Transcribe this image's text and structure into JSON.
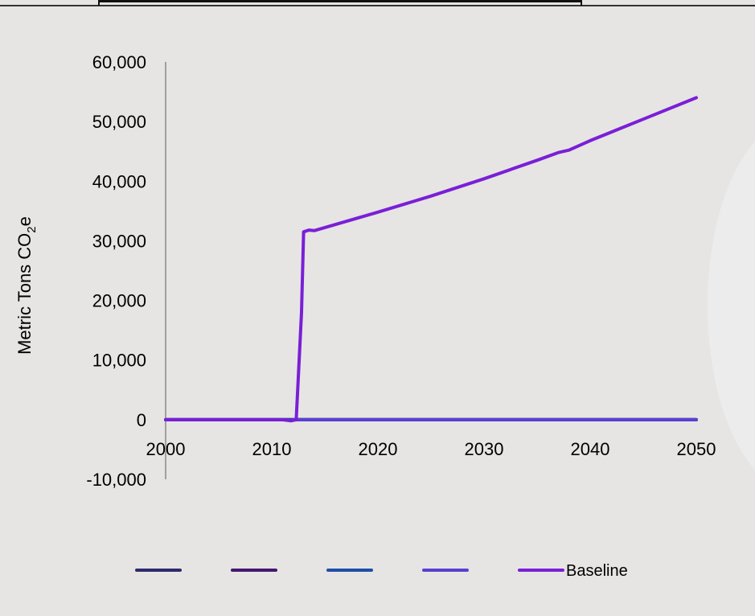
{
  "chart_data": {
    "type": "line",
    "title": "",
    "xlabel": "",
    "ylabel": {
      "main": "Metric Tons CO",
      "subscript": "2",
      "suffix": "e"
    },
    "xlim": [
      2000,
      2050
    ],
    "ylim": [
      -10000,
      60000
    ],
    "x_ticks": [
      2000,
      2010,
      2020,
      2030,
      2040,
      2050
    ],
    "x_tick_labels": [
      "2000",
      "2010",
      "2020",
      "2030",
      "2040",
      "2050"
    ],
    "y_ticks": [
      60000,
      50000,
      40000,
      30000,
      20000,
      10000,
      0,
      -10000
    ],
    "y_tick_labels": [
      "60,000",
      "50,000",
      "40,000",
      "30,000",
      "20,000",
      "10,000",
      "0",
      "-10,000"
    ],
    "grid": false,
    "legend_position": "bottom",
    "series": [
      {
        "name": "",
        "color": "#2e2a6e",
        "x": [
          2000,
          2050
        ],
        "y": [
          0,
          0
        ]
      },
      {
        "name": "",
        "color": "#43196e",
        "x": [
          2000,
          2050
        ],
        "y": [
          0,
          0
        ]
      },
      {
        "name": "",
        "color": "#1f4ea8",
        "x": [
          2000,
          2050
        ],
        "y": [
          0,
          0
        ]
      },
      {
        "name": "",
        "color": "#5a3fd0",
        "x": [
          2012,
          2050
        ],
        "y": [
          0,
          0
        ]
      },
      {
        "name": "Baseline",
        "color": "#7a1fd6",
        "x": [
          2000,
          2011,
          2011.8,
          2012.3,
          2012.8,
          2013,
          2013.5,
          2014,
          2020,
          2025,
          2030,
          2035,
          2037,
          2038,
          2040,
          2045,
          2050
        ],
        "y": [
          0,
          0,
          -200,
          0,
          18000,
          31500,
          31800,
          31700,
          34800,
          37500,
          40400,
          43500,
          44800,
          45200,
          46800,
          50400,
          54000
        ]
      }
    ]
  }
}
